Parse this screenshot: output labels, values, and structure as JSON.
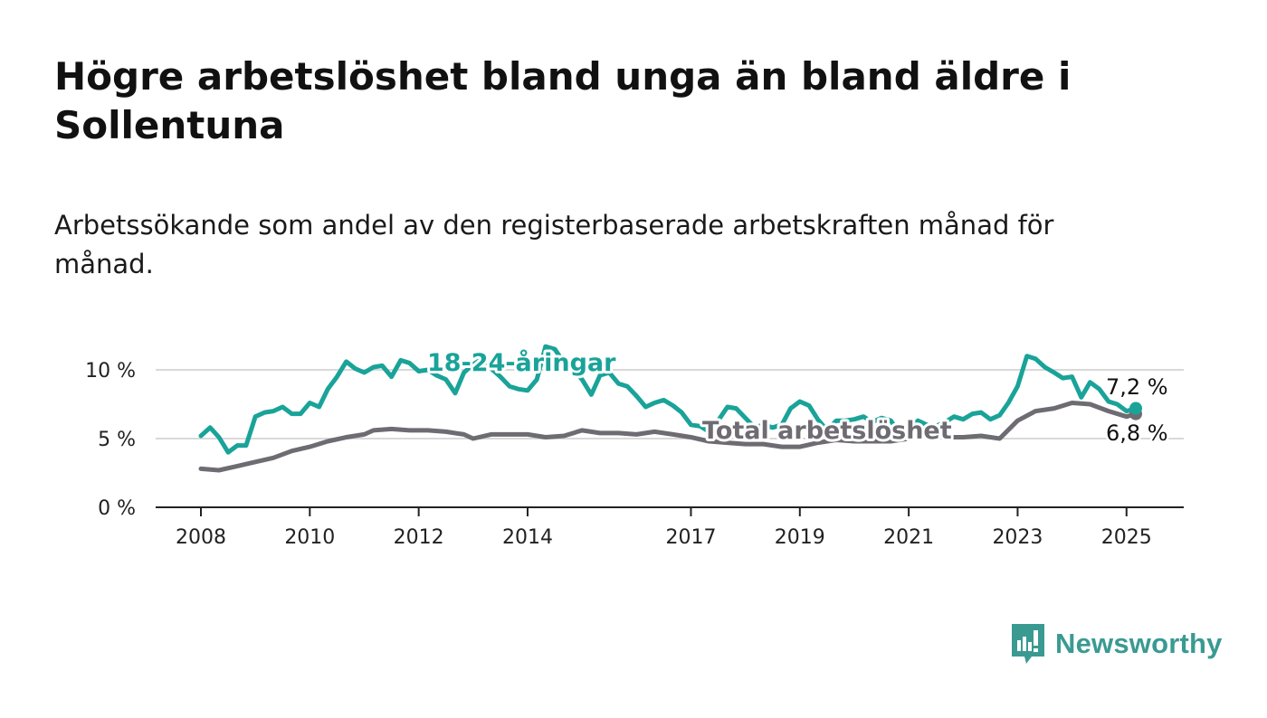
{
  "title": "Högre arbetslöshet bland unga än bland äldre i Sollentuna",
  "subtitle": "Arbetssökande som andel av den registerbaserade arbetskraften månad för månad.",
  "logo": {
    "icon": "newsworthy-logo-icon",
    "text": "Newsworthy",
    "color": "#3a9a92"
  },
  "chart_data": {
    "type": "line",
    "y_ticks": [
      0,
      5,
      10
    ],
    "y_tick_labels": [
      "0 %",
      "5 %",
      "10 %"
    ],
    "ylim": [
      0,
      10
    ],
    "x_ticks": [
      2008,
      2010,
      2012,
      2014,
      2017,
      2019,
      2021,
      2023,
      2025
    ],
    "xlim": [
      2008,
      2025.17
    ],
    "grid": true,
    "series": [
      {
        "name": "18-24-åringar",
        "color": "#19a399",
        "end_label": "7,2 %",
        "points": [
          [
            2008.0,
            5.2
          ],
          [
            2008.17,
            5.8
          ],
          [
            2008.33,
            5.1
          ],
          [
            2008.5,
            4.0
          ],
          [
            2008.67,
            4.5
          ],
          [
            2008.83,
            4.5
          ],
          [
            2009.0,
            6.6
          ],
          [
            2009.17,
            6.9
          ],
          [
            2009.33,
            7.0
          ],
          [
            2009.5,
            7.3
          ],
          [
            2009.67,
            6.8
          ],
          [
            2009.83,
            6.8
          ],
          [
            2010.0,
            7.6
          ],
          [
            2010.17,
            7.3
          ],
          [
            2010.33,
            8.6
          ],
          [
            2010.5,
            9.5
          ],
          [
            2010.67,
            10.6
          ],
          [
            2010.83,
            10.1
          ],
          [
            2011.0,
            9.8
          ],
          [
            2011.17,
            10.2
          ],
          [
            2011.33,
            10.3
          ],
          [
            2011.5,
            9.5
          ],
          [
            2011.67,
            10.7
          ],
          [
            2011.83,
            10.5
          ],
          [
            2012.0,
            9.9
          ],
          [
            2012.17,
            10.0
          ],
          [
            2012.33,
            9.6
          ],
          [
            2012.5,
            9.3
          ],
          [
            2012.67,
            8.3
          ],
          [
            2012.83,
            9.8
          ],
          [
            2013.0,
            10.4
          ],
          [
            2013.17,
            10.8
          ],
          [
            2013.33,
            10.1
          ],
          [
            2013.5,
            9.5
          ],
          [
            2013.67,
            8.8
          ],
          [
            2013.83,
            8.6
          ],
          [
            2014.0,
            8.5
          ],
          [
            2014.17,
            9.3
          ],
          [
            2014.33,
            11.7
          ],
          [
            2014.5,
            11.5
          ],
          [
            2014.67,
            10.5
          ],
          [
            2014.83,
            10.0
          ],
          [
            2015.0,
            9.3
          ],
          [
            2015.17,
            8.2
          ],
          [
            2015.33,
            9.6
          ],
          [
            2015.5,
            9.8
          ],
          [
            2015.67,
            9.0
          ],
          [
            2015.83,
            8.8
          ],
          [
            2016.0,
            8.1
          ],
          [
            2016.17,
            7.3
          ],
          [
            2016.33,
            7.6
          ],
          [
            2016.5,
            7.8
          ],
          [
            2016.67,
            7.4
          ],
          [
            2016.83,
            6.9
          ],
          [
            2017.0,
            6.0
          ],
          [
            2017.17,
            5.9
          ],
          [
            2017.33,
            5.5
          ],
          [
            2017.5,
            6.3
          ],
          [
            2017.67,
            7.3
          ],
          [
            2017.83,
            7.2
          ],
          [
            2018.0,
            6.5
          ],
          [
            2018.17,
            5.8
          ],
          [
            2018.33,
            6.0
          ],
          [
            2018.5,
            5.8
          ],
          [
            2018.67,
            6.0
          ],
          [
            2018.83,
            7.2
          ],
          [
            2019.0,
            7.7
          ],
          [
            2019.17,
            7.4
          ],
          [
            2019.33,
            6.4
          ],
          [
            2019.5,
            5.6
          ],
          [
            2019.67,
            6.3
          ],
          [
            2019.83,
            6.3
          ],
          [
            2020.0,
            6.4
          ],
          [
            2020.17,
            6.6
          ],
          [
            2020.33,
            6.2
          ],
          [
            2020.5,
            6.5
          ],
          [
            2020.67,
            6.3
          ],
          [
            2020.83,
            5.4
          ],
          [
            2021.0,
            5.6
          ],
          [
            2021.17,
            6.3
          ],
          [
            2021.33,
            6.0
          ],
          [
            2021.5,
            5.9
          ],
          [
            2021.67,
            6.2
          ],
          [
            2021.83,
            6.6
          ],
          [
            2022.0,
            6.4
          ],
          [
            2022.17,
            6.8
          ],
          [
            2022.33,
            6.9
          ],
          [
            2022.5,
            6.4
          ],
          [
            2022.67,
            6.7
          ],
          [
            2022.83,
            7.6
          ],
          [
            2023.0,
            8.8
          ],
          [
            2023.17,
            11.0
          ],
          [
            2023.33,
            10.8
          ],
          [
            2023.5,
            10.2
          ],
          [
            2023.67,
            9.8
          ],
          [
            2023.83,
            9.4
          ],
          [
            2024.0,
            9.5
          ],
          [
            2024.17,
            8.0
          ],
          [
            2024.33,
            9.1
          ],
          [
            2024.5,
            8.6
          ],
          [
            2024.67,
            7.7
          ],
          [
            2024.83,
            7.5
          ],
          [
            2025.0,
            7.0
          ],
          [
            2025.17,
            7.2
          ]
        ]
      },
      {
        "name": "Total arbetslöshet",
        "color": "#6e6b72",
        "end_label": "6,8 %",
        "points": [
          [
            2008.0,
            2.8
          ],
          [
            2008.33,
            2.7
          ],
          [
            2008.67,
            3.0
          ],
          [
            2009.0,
            3.3
          ],
          [
            2009.33,
            3.6
          ],
          [
            2009.67,
            4.1
          ],
          [
            2010.0,
            4.4
          ],
          [
            2010.33,
            4.8
          ],
          [
            2010.67,
            5.1
          ],
          [
            2011.0,
            5.3
          ],
          [
            2011.17,
            5.6
          ],
          [
            2011.5,
            5.7
          ],
          [
            2011.83,
            5.6
          ],
          [
            2012.17,
            5.6
          ],
          [
            2012.5,
            5.5
          ],
          [
            2012.83,
            5.3
          ],
          [
            2013.0,
            5.0
          ],
          [
            2013.33,
            5.3
          ],
          [
            2013.67,
            5.3
          ],
          [
            2014.0,
            5.3
          ],
          [
            2014.33,
            5.1
          ],
          [
            2014.67,
            5.2
          ],
          [
            2015.0,
            5.6
          ],
          [
            2015.33,
            5.4
          ],
          [
            2015.67,
            5.4
          ],
          [
            2016.0,
            5.3
          ],
          [
            2016.33,
            5.5
          ],
          [
            2016.67,
            5.3
          ],
          [
            2017.0,
            5.1
          ],
          [
            2017.33,
            4.8
          ],
          [
            2017.67,
            4.7
          ],
          [
            2018.0,
            4.6
          ],
          [
            2018.33,
            4.6
          ],
          [
            2018.67,
            4.4
          ],
          [
            2019.0,
            4.4
          ],
          [
            2019.33,
            4.7
          ],
          [
            2019.67,
            4.9
          ],
          [
            2020.0,
            4.8
          ],
          [
            2020.33,
            4.8
          ],
          [
            2020.67,
            4.8
          ],
          [
            2021.0,
            5.0
          ],
          [
            2021.33,
            5.2
          ],
          [
            2021.67,
            5.1
          ],
          [
            2022.0,
            5.1
          ],
          [
            2022.33,
            5.2
          ],
          [
            2022.67,
            5.0
          ],
          [
            2023.0,
            6.3
          ],
          [
            2023.33,
            7.0
          ],
          [
            2023.67,
            7.2
          ],
          [
            2024.0,
            7.6
          ],
          [
            2024.33,
            7.5
          ],
          [
            2024.67,
            7.0
          ],
          [
            2025.0,
            6.6
          ],
          [
            2025.17,
            6.8
          ]
        ]
      }
    ]
  }
}
